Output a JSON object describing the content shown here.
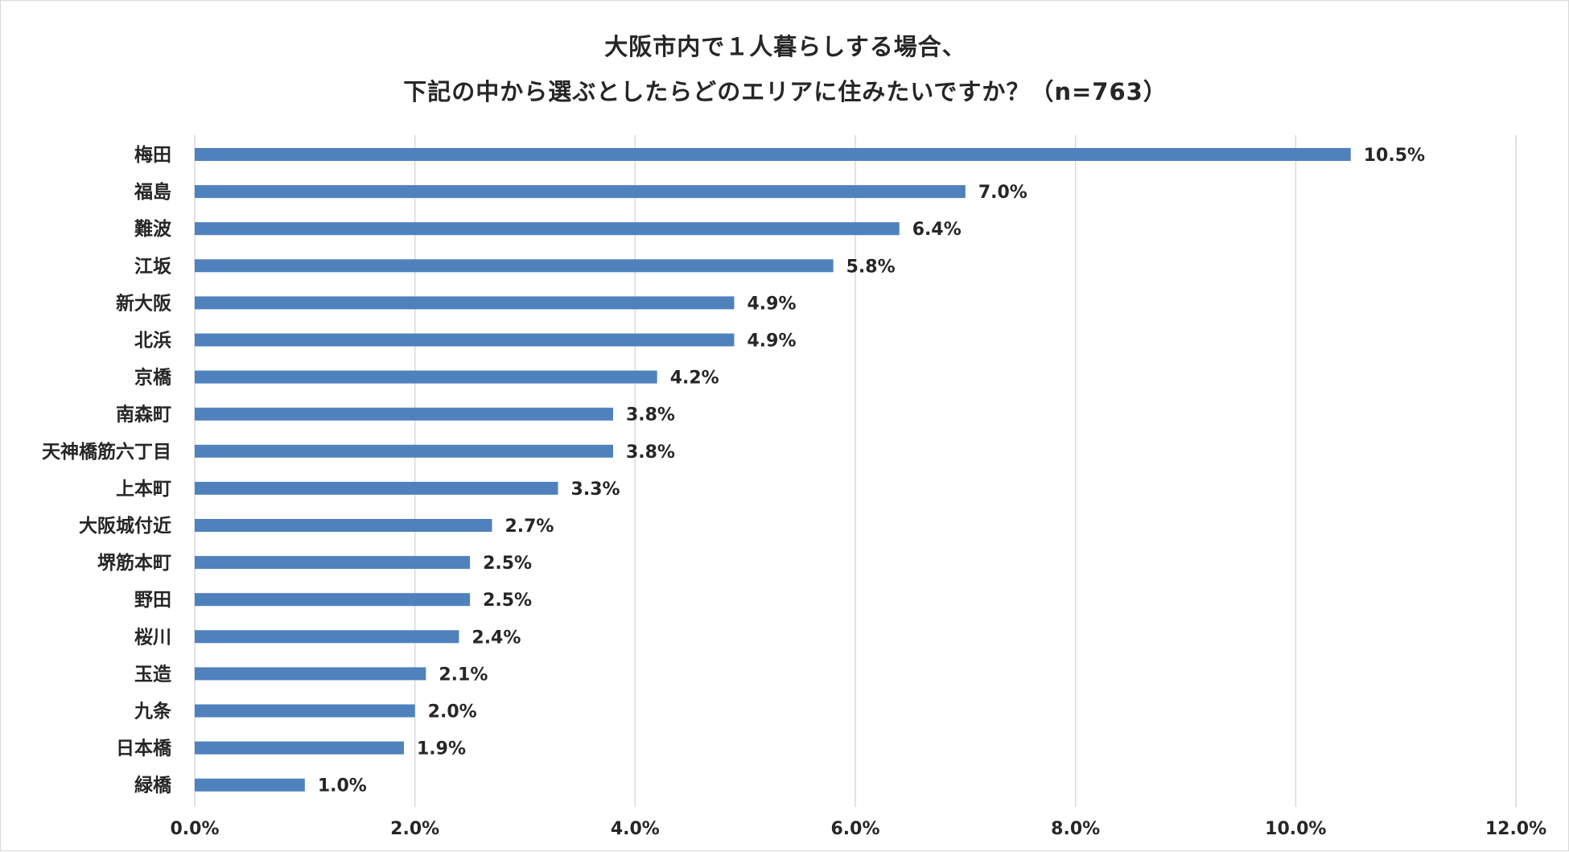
{
  "chart_data": {
    "type": "bar",
    "orientation": "horizontal",
    "title_lines": [
      "大阪市内で１人暮らしする場合、",
      "下記の中から選ぶとしたらどのエリアに住みたいですか？（n=763）"
    ],
    "categories": [
      "梅田",
      "福島",
      "難波",
      "江坂",
      "新大阪",
      "北浜",
      "京橋",
      "南森町",
      "天神橋筋六丁目",
      "上本町",
      "大阪城付近",
      "堺筋本町",
      "野田",
      "桜川",
      "玉造",
      "九条",
      "日本橋",
      "緑橋"
    ],
    "values": [
      10.5,
      7.0,
      6.4,
      5.8,
      4.9,
      4.9,
      4.2,
      3.8,
      3.8,
      3.3,
      2.7,
      2.5,
      2.5,
      2.4,
      2.1,
      2.0,
      1.9,
      1.0
    ],
    "value_labels": [
      "10.5%",
      "7.0%",
      "6.4%",
      "5.8%",
      "4.9%",
      "4.9%",
      "4.2%",
      "3.8%",
      "3.8%",
      "3.3%",
      "2.7%",
      "2.5%",
      "2.5%",
      "2.4%",
      "2.1%",
      "2.0%",
      "1.9%",
      "1.0%"
    ],
    "x_ticks": [
      0,
      2,
      4,
      6,
      8,
      10,
      12
    ],
    "x_tick_labels": [
      "0.0%",
      "2.0%",
      "4.0%",
      "6.0%",
      "8.0%",
      "10.0%",
      "12.0%"
    ],
    "xlim": [
      0,
      12
    ],
    "grid": true,
    "legend": "none",
    "bar_color": "#4f81bd",
    "grid_color": "#d9d9d9"
  }
}
